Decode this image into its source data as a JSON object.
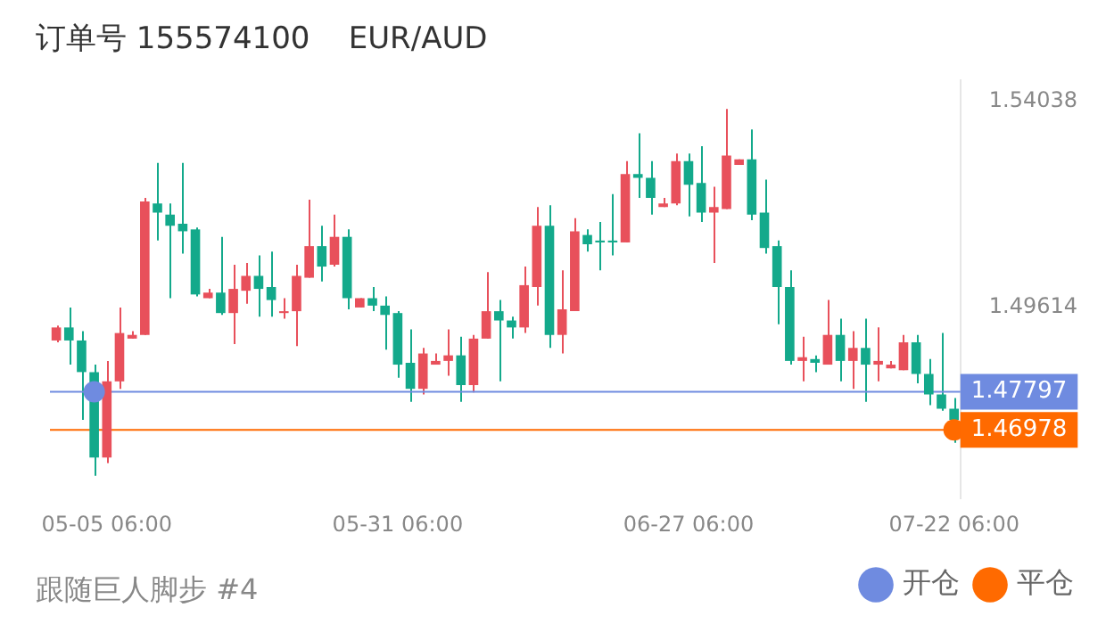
{
  "chart_data": {
    "type": "candlestick",
    "title": "订单号 155574100    EUR/AUD",
    "annotations": [
      "跟随巨人脚步 #4"
    ],
    "categories": [
      null,
      null,
      null,
      null,
      "05-05 06:00",
      null,
      null,
      null,
      null,
      null,
      null,
      null,
      null,
      null,
      null,
      null,
      null,
      null,
      null,
      null,
      null,
      null,
      null,
      null,
      null,
      null,
      null,
      "05-31 06:00",
      null,
      null,
      null,
      null,
      null,
      null,
      null,
      null,
      null,
      null,
      null,
      null,
      null,
      null,
      null,
      null,
      null,
      null,
      null,
      null,
      null,
      null,
      "06-27 06:00",
      null,
      null,
      null,
      null,
      null,
      null,
      null,
      null,
      null,
      null,
      null,
      null,
      null,
      null,
      null,
      null,
      null,
      null,
      null,
      null,
      "07-22 06:00"
    ],
    "ohlc": [
      [
        1.489,
        1.4922,
        1.4886,
        1.4918
      ],
      [
        1.4918,
        1.4961,
        1.4838,
        1.489
      ],
      [
        1.489,
        1.491,
        1.4719,
        1.4822
      ],
      [
        1.4822,
        1.4838,
        1.4599,
        1.4638
      ],
      [
        1.4638,
        1.4846,
        1.4626,
        1.4802
      ],
      [
        1.4802,
        1.4961,
        1.4786,
        1.4906
      ],
      [
        1.4894,
        1.491,
        1.4894,
        1.4902
      ],
      [
        1.4902,
        1.5197,
        1.4902,
        1.5189
      ],
      [
        1.5185,
        1.5272,
        1.5105,
        1.5165
      ],
      [
        1.5161,
        1.5185,
        1.4981,
        1.5137
      ],
      [
        1.5141,
        1.5272,
        1.5077,
        1.5125
      ],
      [
        1.5129,
        1.5133,
        1.4985,
        1.4989
      ],
      [
        1.4981,
        1.5001,
        1.4981,
        1.4993
      ],
      [
        1.4993,
        1.5113,
        1.4945,
        1.4949
      ],
      [
        1.4949,
        1.5053,
        1.4882,
        1.5001
      ],
      [
        1.4997,
        1.5057,
        1.4969,
        1.5029
      ],
      [
        1.5029,
        1.5073,
        1.4941,
        1.5001
      ],
      [
        1.5005,
        1.5081,
        1.4941,
        1.4977
      ],
      [
        1.4949,
        1.4981,
        1.4937,
        1.4953
      ],
      [
        1.4953,
        1.5053,
        1.4878,
        1.5029
      ],
      [
        1.5025,
        1.5193,
        1.5025,
        1.5093
      ],
      [
        1.5093,
        1.5137,
        1.5017,
        1.5049
      ],
      [
        1.5053,
        1.5161,
        1.5049,
        1.5113
      ],
      [
        1.5113,
        1.5129,
        1.4957,
        1.4981
      ],
      [
        1.4961,
        1.4981,
        1.4961,
        1.4981
      ],
      [
        1.4981,
        1.5005,
        1.4953,
        1.4965
      ],
      [
        1.4965,
        1.4985,
        1.487,
        1.4945
      ],
      [
        1.4949,
        1.4953,
        1.481,
        1.4838
      ],
      [
        1.4842,
        1.4914,
        1.4758,
        1.4786
      ],
      [
        1.4786,
        1.4874,
        1.4774,
        1.4862
      ],
      [
        1.4838,
        1.4862,
        1.4838,
        1.4846
      ],
      [
        1.4846,
        1.4914,
        1.4814,
        1.4858
      ],
      [
        1.4858,
        1.4898,
        1.4758,
        1.4794
      ],
      [
        1.4794,
        1.4902,
        1.4778,
        1.4894
      ],
      [
        1.4894,
        1.5037,
        1.4894,
        1.4953
      ],
      [
        1.4953,
        1.4977,
        1.4802,
        1.4933
      ],
      [
        1.4933,
        1.4941,
        1.4894,
        1.4918
      ],
      [
        1.4918,
        1.5049,
        1.4906,
        1.5009
      ],
      [
        1.5005,
        1.5177,
        1.4965,
        1.5137
      ],
      [
        1.5137,
        1.5181,
        1.4874,
        1.4902
      ],
      [
        1.4902,
        1.5041,
        1.4862,
        1.4957
      ],
      [
        1.4953,
        1.5153,
        1.4953,
        1.5125
      ],
      [
        1.5117,
        1.5129,
        1.5081,
        1.5097
      ],
      [
        1.5105,
        1.5145,
        1.5041,
        1.5101
      ],
      [
        1.5105,
        1.5205,
        1.5073,
        1.5101
      ],
      [
        1.5101,
        1.5276,
        1.5101,
        1.5248
      ],
      [
        1.5248,
        1.5336,
        1.5197,
        1.524
      ],
      [
        1.524,
        1.5276,
        1.5161,
        1.5197
      ],
      [
        1.5177,
        1.5197,
        1.5177,
        1.5185
      ],
      [
        1.5185,
        1.5292,
        1.5181,
        1.5276
      ],
      [
        1.5276,
        1.5292,
        1.5157,
        1.5225
      ],
      [
        1.5229,
        1.5308,
        1.5145,
        1.5165
      ],
      [
        1.5165,
        1.5221,
        1.5057,
        1.5177
      ],
      [
        1.5173,
        1.5388,
        1.5173,
        1.5288
      ],
      [
        1.5268,
        1.528,
        1.5268,
        1.528
      ],
      [
        1.528,
        1.5344,
        1.5149,
        1.5161
      ],
      [
        1.5165,
        1.5236,
        1.5077,
        1.5089
      ],
      [
        1.5093,
        1.5105,
        1.4925,
        1.5005
      ],
      [
        1.5005,
        1.5041,
        1.4838,
        1.4846
      ],
      [
        1.4846,
        1.4898,
        1.4802,
        1.4854
      ],
      [
        1.485,
        1.4858,
        1.4822,
        1.4842
      ],
      [
        1.4838,
        1.4977,
        1.4838,
        1.4902
      ],
      [
        1.4902,
        1.4937,
        1.4802,
        1.4846
      ],
      [
        1.4846,
        1.491,
        1.4786,
        1.4874
      ],
      [
        1.4874,
        1.4937,
        1.4758,
        1.4838
      ],
      [
        1.4838,
        1.4918,
        1.4802,
        1.4846
      ],
      [
        1.483,
        1.4846,
        1.483,
        1.4838
      ],
      [
        1.4826,
        1.4902,
        1.4826,
        1.4886
      ],
      [
        1.4886,
        1.4902,
        1.4798,
        1.4818
      ],
      [
        1.4818,
        1.485,
        1.4751,
        1.4774
      ],
      [
        1.4774,
        1.4906,
        1.4739,
        1.4743
      ],
      [
        1.4743,
        1.4766,
        1.467,
        1.4719
      ]
    ],
    "colors": [
      "#e8505b",
      "#13a98b",
      "#13a98b",
      "#13a98b",
      "#e8505b",
      "#e8505b",
      "#e8505b",
      "#e8505b",
      "#13a98b",
      "#13a98b",
      "#13a98b",
      "#13a98b",
      "#e8505b",
      "#13a98b",
      "#e8505b",
      "#e8505b",
      "#13a98b",
      "#13a98b",
      "#e8505b",
      "#e8505b",
      "#e8505b",
      "#13a98b",
      "#e8505b",
      "#13a98b",
      "#e8505b",
      "#13a98b",
      "#13a98b",
      "#13a98b",
      "#13a98b",
      "#e8505b",
      "#e8505b",
      "#e8505b",
      "#13a98b",
      "#e8505b",
      "#e8505b",
      "#13a98b",
      "#13a98b",
      "#e8505b",
      "#e8505b",
      "#13a98b",
      "#e8505b",
      "#e8505b",
      "#13a98b",
      "#13a98b",
      "#13a98b",
      "#e8505b",
      "#13a98b",
      "#13a98b",
      "#e8505b",
      "#e8505b",
      "#13a98b",
      "#13a98b",
      "#e8505b",
      "#e8505b",
      "#e8505b",
      "#13a98b",
      "#13a98b",
      "#13a98b",
      "#13a98b",
      "#e8505b",
      "#13a98b",
      "#e8505b",
      "#13a98b",
      "#e8505b",
      "#13a98b",
      "#e8505b",
      "#e8505b",
      "#e8505b",
      "#13a98b",
      "#13a98b",
      "#13a98b",
      "#13a98b"
    ],
    "series": [
      {
        "name": "开仓",
        "type": "scatter",
        "color": "#6f8be0",
        "values": [
          null,
          null,
          null,
          1.47797,
          null,
          null,
          null,
          null,
          null,
          null,
          null,
          null,
          null,
          null,
          null,
          null,
          null,
          null,
          null,
          null,
          null,
          null,
          null,
          null,
          null,
          null,
          null,
          null,
          null,
          null,
          null,
          null,
          null,
          null,
          null,
          null,
          null,
          null,
          null,
          null,
          null,
          null,
          null,
          null,
          null,
          null,
          null,
          null,
          null,
          null,
          null,
          null,
          null,
          null,
          null,
          null,
          null,
          null,
          null,
          null,
          null,
          null,
          null,
          null,
          null,
          null,
          null,
          null,
          null,
          null,
          null,
          null
        ]
      },
      {
        "name": "平仓",
        "type": "scatter",
        "color": "#ff6a00",
        "values": [
          null,
          null,
          null,
          null,
          null,
          null,
          null,
          null,
          null,
          null,
          null,
          null,
          null,
          null,
          null,
          null,
          null,
          null,
          null,
          null,
          null,
          null,
          null,
          null,
          null,
          null,
          null,
          null,
          null,
          null,
          null,
          null,
          null,
          null,
          null,
          null,
          null,
          null,
          null,
          null,
          null,
          null,
          null,
          null,
          null,
          null,
          null,
          null,
          null,
          null,
          null,
          null,
          null,
          null,
          null,
          null,
          null,
          null,
          null,
          null,
          null,
          null,
          null,
          null,
          null,
          null,
          null,
          null,
          null,
          null,
          null,
          1.46978
        ]
      }
    ],
    "ref_lines": [
      {
        "axis": "y",
        "value": 1.47797,
        "label": "1.47797",
        "color": "#6f8be0"
      },
      {
        "axis": "y",
        "value": 1.46978,
        "label": "1.46978",
        "color": "#ff6a00"
      }
    ],
    "ylim": [
      1.455,
      1.545
    ],
    "yticks": [
      1.49614,
      1.54038
    ],
    "marker": "circle",
    "legend": "bottom right"
  }
}
